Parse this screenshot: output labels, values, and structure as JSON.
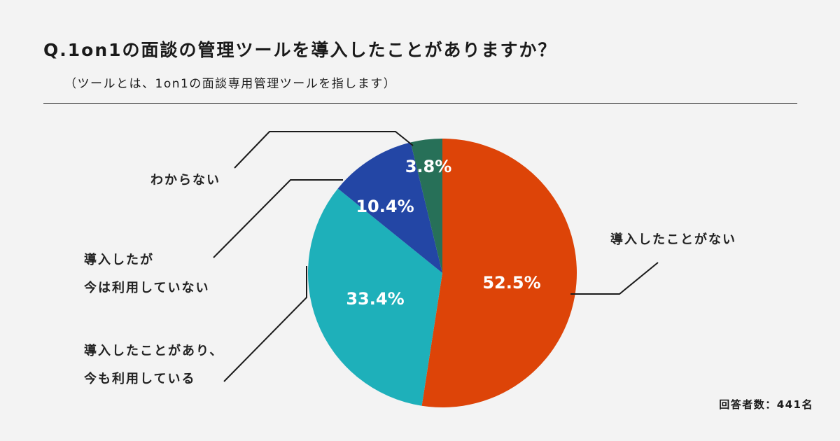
{
  "header": {
    "title": "Q.1on1の面談の管理ツールを導入したことがありますか？",
    "subtitle": "（ツールとは、1on1の面談専用管理ツールを指します）"
  },
  "chart_data": {
    "type": "pie",
    "slices": [
      {
        "label": "導入したことがない",
        "value": 52.5,
        "value_label": "52.5%",
        "color": "#dd4408"
      },
      {
        "label": "導入したことがあり、今も利用している",
        "value": 33.4,
        "value_label": "33.4%",
        "color": "#1eb0ba"
      },
      {
        "label": "導入したが今は利用していない",
        "value": 10.4,
        "value_label": "10.4%",
        "color": "#2346a5"
      },
      {
        "label": "わからない",
        "value": 3.8,
        "value_label": "3.8%",
        "color": "#277058"
      }
    ],
    "category_labels": {
      "never": "導入したことがない",
      "used_line1": "導入したことがあり、",
      "used_line2": "今も利用している",
      "stopped_line1": "導入したが",
      "stopped_line2": "今は利用していない",
      "unknown": "わからない"
    }
  },
  "footnote": "回答者数：441名"
}
